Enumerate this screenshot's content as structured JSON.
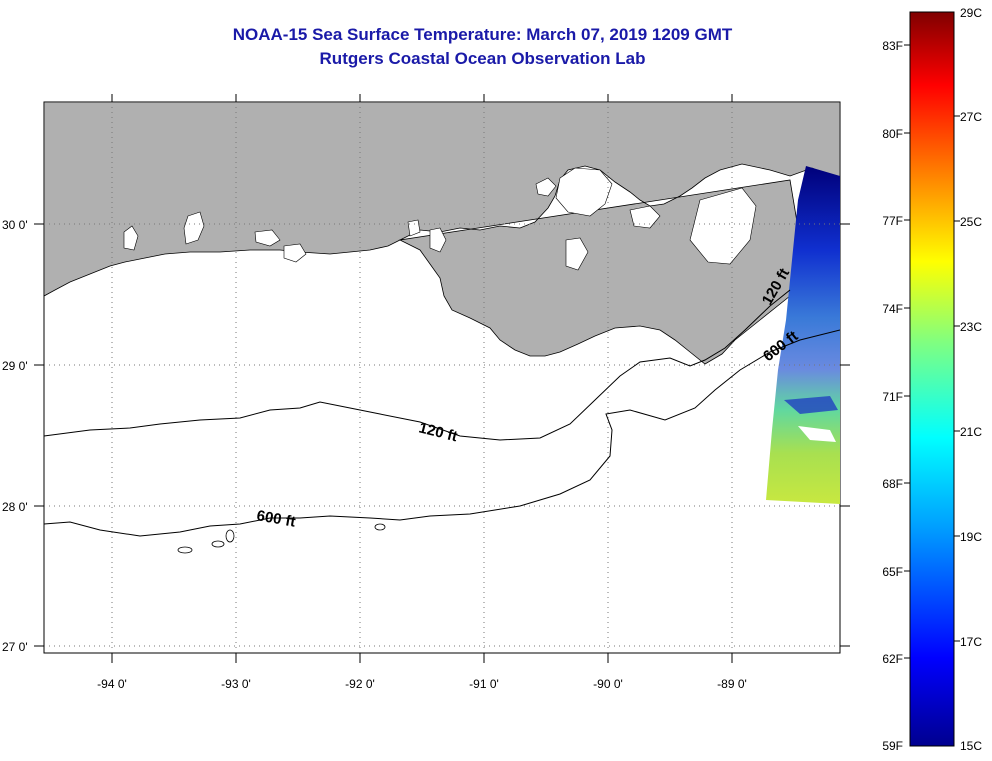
{
  "title": "NOAA-15 Sea Surface Temperature:  March 07, 2019 1209 GMT",
  "subtitle": "Rutgers Coastal Ocean Observation Lab",
  "map": {
    "lon_labels": [
      "-94 0'",
      "-93 0'",
      "-92 0'",
      "-91 0'",
      "-90 0'",
      "-89 0'"
    ],
    "lat_labels": [
      "30 0'",
      "29 0'",
      "28 0'",
      "27 0'"
    ],
    "contour_labels": {
      "c120_west": "120 ft",
      "c120_east": "120 ft",
      "c600_west": "600 ft",
      "c600_east": "600 ft"
    },
    "colors": {
      "land": "#b0b0b0",
      "water": "#ffffff",
      "grid": "#555555"
    }
  },
  "colorbar": {
    "fahrenheit_labels": [
      "83F",
      "80F",
      "77F",
      "74F",
      "71F",
      "68F",
      "65F",
      "62F",
      "59F"
    ],
    "celsius_labels": [
      "29C",
      "27C",
      "25C",
      "23C",
      "21C",
      "19C",
      "17C",
      "15C"
    ],
    "range_c": [
      15,
      29
    ],
    "colormap": [
      "#00008f",
      "#0000ff",
      "#00a0ff",
      "#00ffff",
      "#80ff80",
      "#ffff00",
      "#ff8000",
      "#ff0000",
      "#800000"
    ]
  }
}
